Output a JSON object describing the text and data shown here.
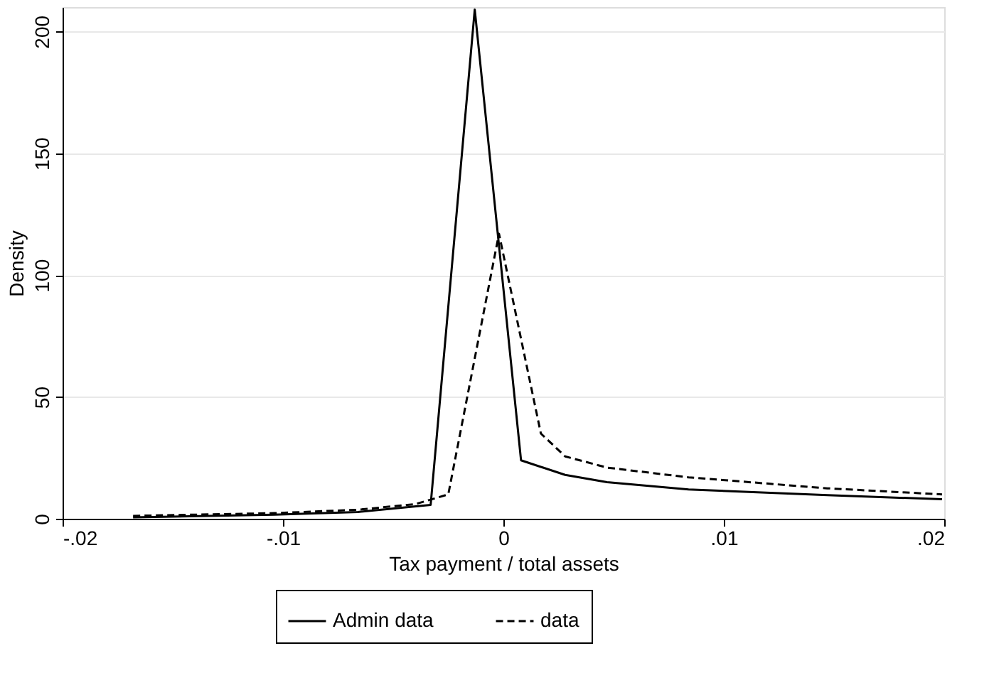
{
  "chart_data": {
    "type": "line",
    "xlabel": "Tax payment / total assets",
    "ylabel": "Density",
    "xlim": [
      -0.02,
      0.02
    ],
    "xticks": [
      {
        "value": -0.02,
        "label": "-.02"
      },
      {
        "value": -0.01,
        "label": "-.01"
      },
      {
        "value": 0,
        "label": "0"
      },
      {
        "value": 0.01,
        "label": ".01"
      },
      {
        "value": 0.02,
        "label": ".02"
      }
    ],
    "ylim": [
      0,
      210
    ],
    "yticks": [
      0,
      50,
      100,
      150,
      200
    ],
    "grid": "y",
    "legend": "bottom",
    "series": [
      {
        "name": "Admin data",
        "color": "#000000",
        "line_style": "solid",
        "x": [
          -0.0168,
          -0.0104,
          -0.0066,
          -0.0033,
          -0.0013,
          0.0008,
          0.0028,
          0.0047,
          0.0084,
          0.0147,
          0.0199
        ],
        "values": [
          0.6,
          1.7,
          2.8,
          5.7,
          209,
          24,
          18,
          15,
          12,
          9.7,
          8
        ]
      },
      {
        "name": "data",
        "color": "#000000",
        "line_style": "dashed",
        "x": [
          -0.0168,
          -0.0104,
          -0.0066,
          -0.004,
          -0.0025,
          -0.0002,
          0.0017,
          0.0028,
          0.0047,
          0.0084,
          0.0147,
          0.0199
        ],
        "values": [
          1.2,
          2.3,
          3.7,
          6,
          10,
          117,
          35,
          25.6,
          21,
          17,
          12.5,
          10
        ]
      }
    ]
  }
}
